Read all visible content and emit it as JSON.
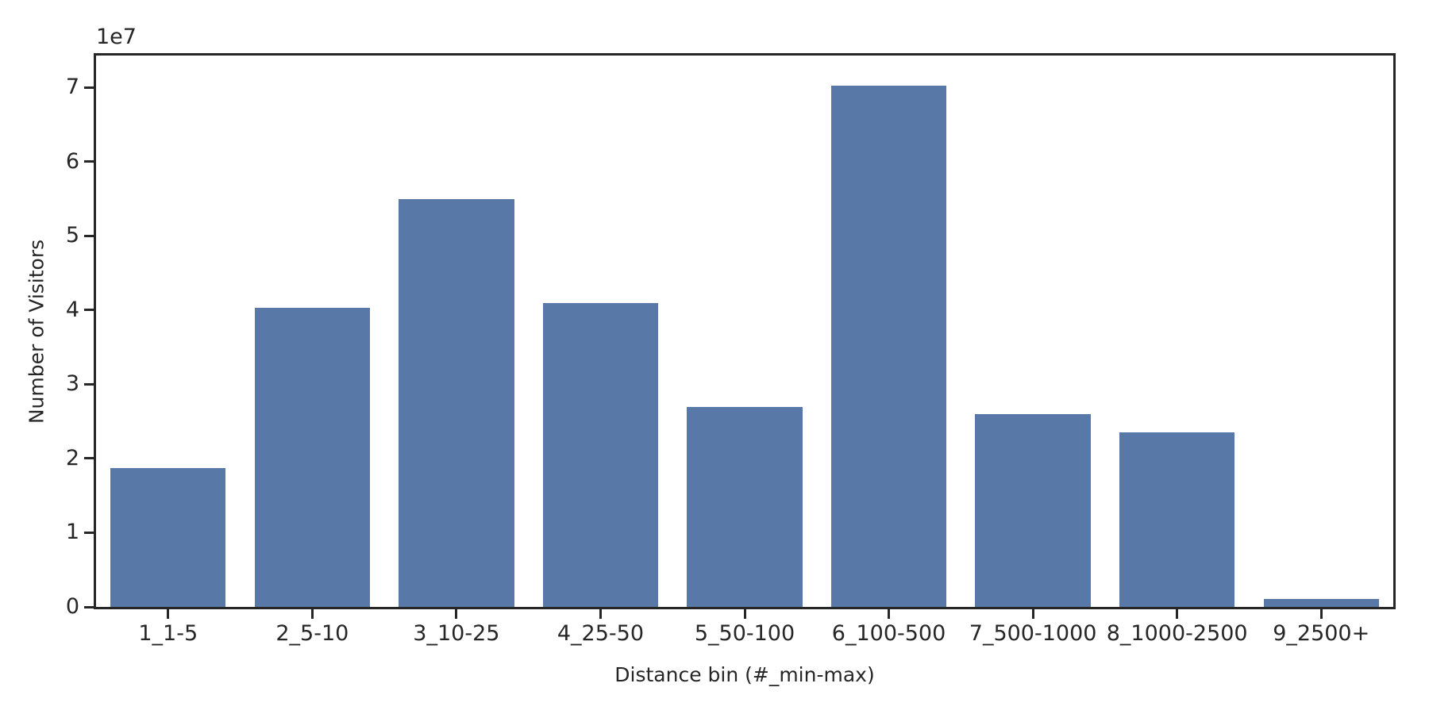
{
  "chart_data": {
    "type": "bar",
    "title": "",
    "xlabel": "Distance bin (#_min-max)",
    "ylabel": "Number of Visitors",
    "y_offset_text": "1e7",
    "categories": [
      "1_1-5",
      "2_5-10",
      "3_10-25",
      "4_25-50",
      "5_50-100",
      "6_100-500",
      "7_500-1000",
      "8_1000-2500",
      "9_2500+"
    ],
    "values": [
      18700000,
      40300000,
      55000000,
      41000000,
      26900000,
      70200000,
      26000000,
      23500000,
      1100000
    ],
    "yticks": [
      0,
      1,
      2,
      3,
      4,
      5,
      6,
      7
    ],
    "ytick_multiplier": 10000000,
    "ylim": [
      0,
      74300000
    ],
    "bar_width_fraction": 0.8,
    "bar_color": "#5878a8",
    "axis_color": "#262626",
    "text_color": "#262626",
    "background_color": "#ffffff",
    "grid": false
  }
}
